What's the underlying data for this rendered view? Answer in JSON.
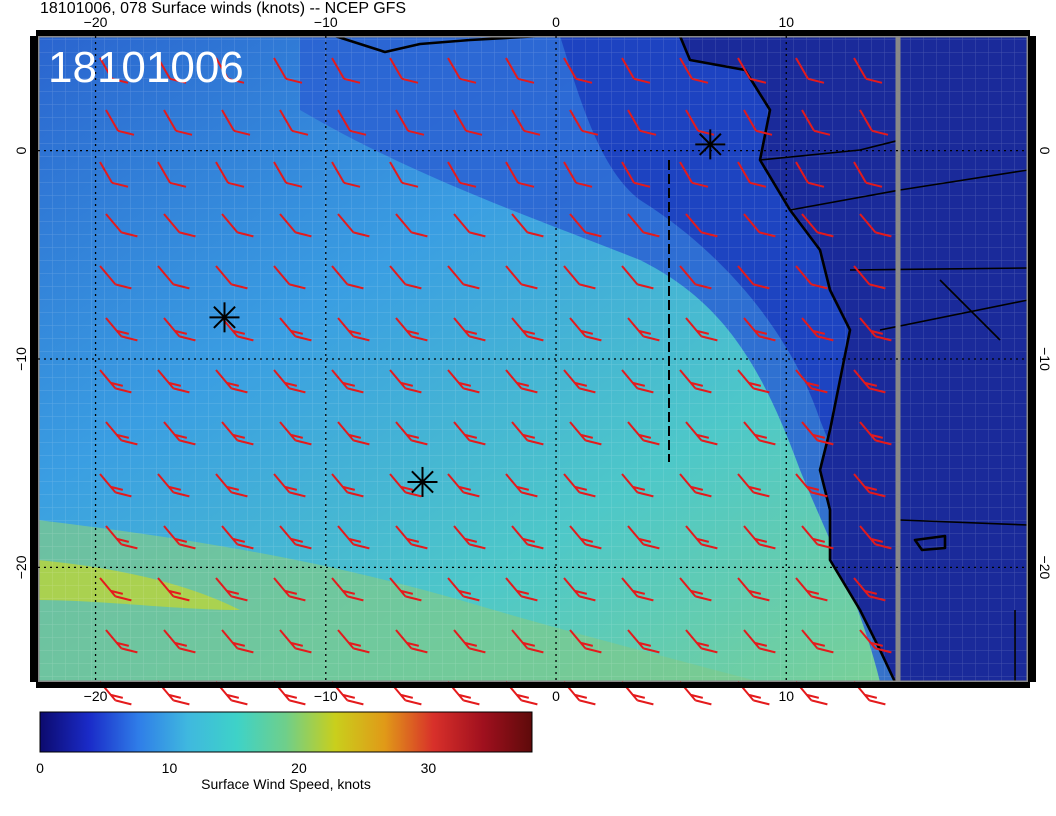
{
  "title": "18101006, 078 Surface winds (knots) -- NCEP GFS",
  "stamp": "18101006",
  "map": {
    "lon_range": [
      -22.5,
      20.5
    ],
    "lat_range": [
      -25.5,
      5.5
    ],
    "lon_ticks": [
      {
        "value": -20,
        "label": "−20"
      },
      {
        "value": -10,
        "label": "−10"
      },
      {
        "value": 0,
        "label": "0"
      },
      {
        "value": 10,
        "label": "10"
      }
    ],
    "lat_ticks": [
      {
        "value": 0,
        "label": "0"
      },
      {
        "value": -10,
        "label": "−10"
      },
      {
        "value": -20,
        "label": "−20"
      }
    ],
    "markers": [
      {
        "name": "storm-marker-north",
        "lon": 6.7,
        "lat": 0.3
      },
      {
        "name": "storm-marker-west",
        "lon": -14.4,
        "lat": -8.0
      },
      {
        "name": "storm-marker-south",
        "lon": -5.8,
        "lat": -15.9
      }
    ]
  },
  "colorbar": {
    "label": "Surface Wind Speed, knots",
    "range": [
      0,
      38
    ],
    "ticks": [
      {
        "value": 0,
        "label": "0"
      },
      {
        "value": 10,
        "label": "10"
      },
      {
        "value": 20,
        "label": "20"
      },
      {
        "value": 30,
        "label": "30"
      }
    ],
    "colors": [
      "#0c0a6e",
      "#1a2bc8",
      "#2f7de8",
      "#3fb8df",
      "#3ed2c8",
      "#6fcf8a",
      "#c9cf1c",
      "#e09a18",
      "#d8302a",
      "#a0101e",
      "#5e0a0a"
    ]
  },
  "colors": {
    "barbs": "#e41a1c",
    "ocean_fast": "#8ed27e",
    "ocean_mid": "#3fc8c8",
    "ocean_slow": "#2a6fd6",
    "land": "#1a2c9c"
  }
}
